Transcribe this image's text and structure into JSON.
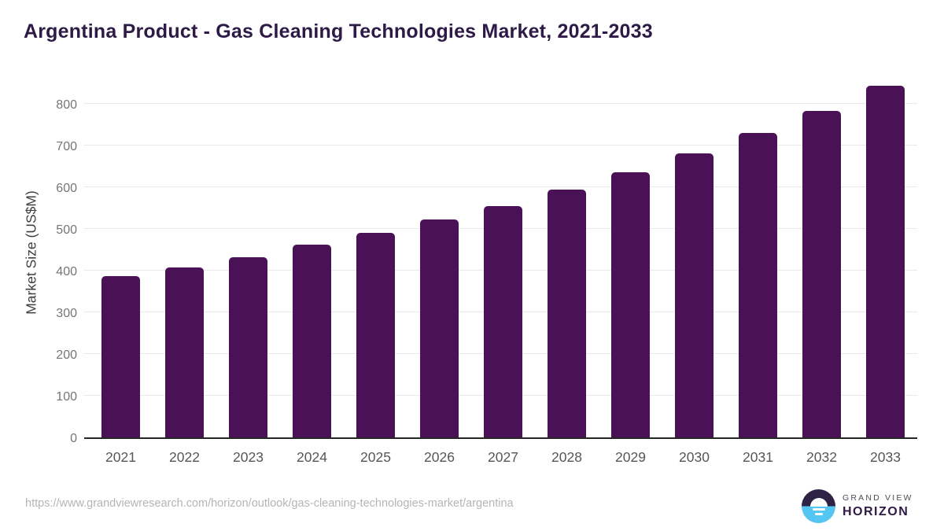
{
  "title": "Argentina Product - Gas Cleaning Technologies Market, 2021-2033",
  "chart_data": {
    "type": "bar",
    "title": "Argentina Product - Gas Cleaning Technologies Market, 2021-2033",
    "categories": [
      "2021",
      "2022",
      "2023",
      "2024",
      "2025",
      "2026",
      "2027",
      "2028",
      "2029",
      "2030",
      "2031",
      "2032",
      "2033"
    ],
    "values": [
      387,
      409,
      433,
      462,
      491,
      523,
      556,
      595,
      636,
      682,
      731,
      784,
      844
    ],
    "xlabel": "",
    "ylabel": "Market Size (US$M)",
    "ylim": [
      0,
      850
    ],
    "y_ticks": [
      0,
      100,
      200,
      300,
      400,
      500,
      600,
      700,
      800
    ],
    "grid": "horizontal",
    "legend_position": "none",
    "bar_color": "#4a1157"
  },
  "colors": {
    "title": "#2e1a47",
    "bar": "#4a1157",
    "gridline": "#e9e9e9",
    "axis_line": "#262626",
    "tick_label": "#757575",
    "x_label": "#565656",
    "y_axis_label": "#404040",
    "url": "#b5b5b5",
    "logo_dark": "#2e2247",
    "logo_blue": "#55c6f2",
    "brand_gray": "#504a58"
  },
  "footer": {
    "source_url": "https://www.grandviewresearch.com/horizon/outlook/gas-cleaning-technologies-market/argentina",
    "logo": {
      "line1": "GRAND VIEW",
      "line2": "HORIZON"
    }
  }
}
